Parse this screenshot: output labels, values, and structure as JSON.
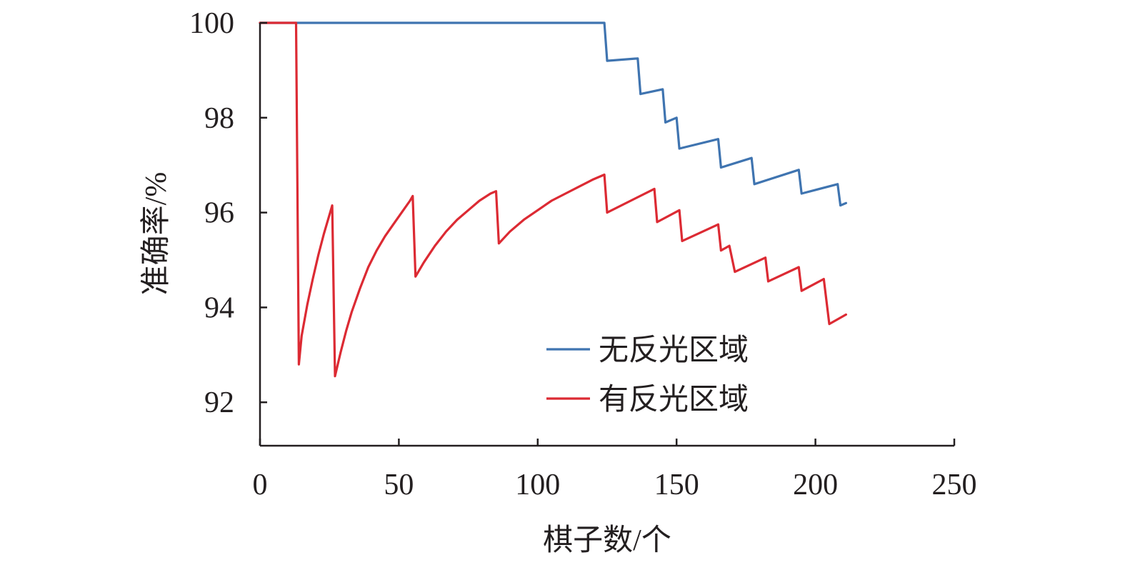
{
  "chart_data": {
    "type": "line",
    "xlabel": "棋子数/个",
    "ylabel": "准确率/%",
    "xlim": [
      0,
      250
    ],
    "ylim": [
      91,
      100
    ],
    "xticks": [
      0,
      50,
      100,
      150,
      200,
      250
    ],
    "yticks": [
      92,
      94,
      96,
      98,
      100
    ],
    "grid": false,
    "legend_position": "lower-right",
    "series": [
      {
        "name": "无反光区域",
        "color": "#3f74b0",
        "points": [
          [
            0,
            100
          ],
          [
            124,
            100
          ],
          [
            125,
            99.2
          ],
          [
            136,
            99.25
          ],
          [
            137,
            98.5
          ],
          [
            145,
            98.6
          ],
          [
            146,
            97.9
          ],
          [
            150,
            98.0
          ],
          [
            151,
            97.35
          ],
          [
            165,
            97.55
          ],
          [
            166,
            96.95
          ],
          [
            177,
            97.15
          ],
          [
            178,
            96.6
          ],
          [
            194,
            96.9
          ],
          [
            195,
            96.4
          ],
          [
            208,
            96.6
          ],
          [
            209,
            96.15
          ],
          [
            211,
            96.2
          ]
        ]
      },
      {
        "name": "有反光区域",
        "color": "#dc2a33",
        "points": [
          [
            0,
            100
          ],
          [
            13,
            100
          ],
          [
            14,
            92.8
          ],
          [
            15,
            93.4
          ],
          [
            17,
            94.05
          ],
          [
            19,
            94.6
          ],
          [
            21,
            95.1
          ],
          [
            23,
            95.55
          ],
          [
            25,
            95.95
          ],
          [
            26,
            96.15
          ],
          [
            27,
            92.55
          ],
          [
            29,
            93.05
          ],
          [
            31,
            93.5
          ],
          [
            33,
            93.9
          ],
          [
            36,
            94.4
          ],
          [
            39,
            94.85
          ],
          [
            42,
            95.2
          ],
          [
            45,
            95.5
          ],
          [
            48,
            95.75
          ],
          [
            51,
            96.0
          ],
          [
            54,
            96.25
          ],
          [
            55,
            96.35
          ],
          [
            56,
            94.65
          ],
          [
            59,
            94.95
          ],
          [
            63,
            95.3
          ],
          [
            67,
            95.6
          ],
          [
            71,
            95.85
          ],
          [
            75,
            96.05
          ],
          [
            79,
            96.25
          ],
          [
            83,
            96.4
          ],
          [
            85,
            96.45
          ],
          [
            86,
            95.35
          ],
          [
            90,
            95.6
          ],
          [
            95,
            95.85
          ],
          [
            100,
            96.05
          ],
          [
            105,
            96.25
          ],
          [
            110,
            96.4
          ],
          [
            115,
            96.55
          ],
          [
            120,
            96.7
          ],
          [
            124,
            96.8
          ],
          [
            125,
            96.0
          ],
          [
            142,
            96.5
          ],
          [
            143,
            95.8
          ],
          [
            151,
            96.05
          ],
          [
            152,
            95.4
          ],
          [
            165,
            95.75
          ],
          [
            166,
            95.2
          ],
          [
            169,
            95.3
          ],
          [
            171,
            94.75
          ],
          [
            182,
            95.05
          ],
          [
            183,
            94.55
          ],
          [
            194,
            94.85
          ],
          [
            195,
            94.35
          ],
          [
            203,
            94.6
          ],
          [
            205,
            93.65
          ],
          [
            211,
            93.85
          ]
        ]
      }
    ]
  }
}
